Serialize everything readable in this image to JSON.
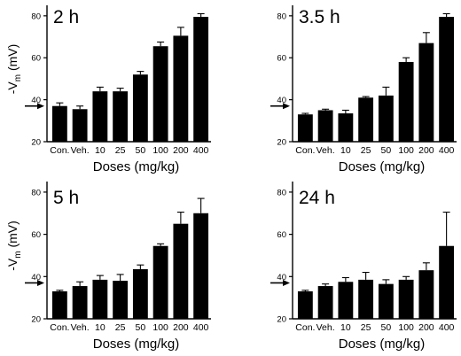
{
  "shared": {
    "categories": [
      "Con.",
      "Veh.",
      "10",
      "25",
      "50",
      "100",
      "200",
      "400"
    ],
    "xlabel": "Doses (mg/kg)",
    "ylabel_base": "-V",
    "ylabel_sub": "m",
    "ylabel_unit": " (mV)",
    "ylim": [
      20,
      85
    ],
    "yticks": [
      "20",
      "40",
      "60",
      "80"
    ],
    "control_arrow_value": 37,
    "bar_color": "#000000"
  },
  "chart_data": [
    {
      "type": "bar",
      "title": "2 h",
      "categories": [
        "Con.",
        "Veh.",
        "10",
        "25",
        "50",
        "100",
        "200",
        "400"
      ],
      "values": [
        37,
        35.5,
        44,
        44,
        52,
        65.5,
        70.5,
        79.5
      ],
      "errors": [
        1.5,
        1.5,
        2,
        1.5,
        1.5,
        2,
        4,
        1.5
      ],
      "xlabel": "Doses (mg/kg)",
      "ylabel": "-Vm (mV)",
      "ylim": [
        20,
        85
      ]
    },
    {
      "type": "bar",
      "title": "3.5 h",
      "categories": [
        "Con.",
        "Veh.",
        "10",
        "25",
        "50",
        "100",
        "200",
        "400"
      ],
      "values": [
        33,
        35,
        33.5,
        41,
        42,
        58,
        67,
        79.5
      ],
      "errors": [
        0.5,
        0.5,
        1.5,
        0.5,
        4,
        2,
        5,
        1.5
      ],
      "xlabel": "Doses (mg/kg)",
      "ylabel": "",
      "ylim": [
        20,
        85
      ]
    },
    {
      "type": "bar",
      "title": "5 h",
      "categories": [
        "Con.",
        "Veh.",
        "10",
        "25",
        "50",
        "100",
        "200",
        "400"
      ],
      "values": [
        33,
        35.5,
        38.5,
        38,
        43.5,
        54.5,
        65,
        70
      ],
      "errors": [
        0.5,
        2,
        2,
        3,
        2,
        1,
        5.5,
        7
      ],
      "xlabel": "Doses (mg/kg)",
      "ylabel": "-Vm (mV)",
      "ylim": [
        20,
        85
      ]
    },
    {
      "type": "bar",
      "title": "24 h",
      "categories": [
        "Con.",
        "Veh.",
        "10",
        "25",
        "50",
        "100",
        "200",
        "400"
      ],
      "values": [
        33,
        35.5,
        37.5,
        38.5,
        36.5,
        38.5,
        43,
        54.5
      ],
      "errors": [
        0.5,
        1,
        2,
        3.5,
        2,
        1.5,
        3.5,
        16
      ],
      "xlabel": "Doses (mg/kg)",
      "ylabel": "",
      "ylim": [
        20,
        85
      ]
    }
  ]
}
